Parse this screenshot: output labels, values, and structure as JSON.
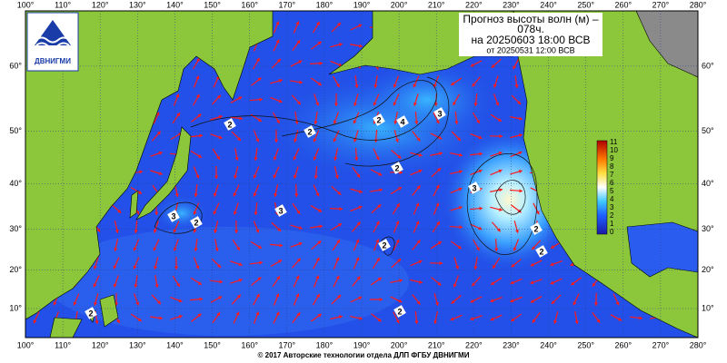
{
  "header": {
    "title": "Прогноз высоты волн (м) –",
    "lead": "078ч.",
    "valid": "на 20250603 18:00 ВСВ",
    "issued": "от 20250531 12:00 ВСВ"
  },
  "logo": {
    "text": "ДВНИГМИ"
  },
  "lon_labels": [
    {
      "value": 100,
      "label": "100°"
    },
    {
      "value": 110,
      "label": "110°"
    },
    {
      "value": 120,
      "label": "120°"
    },
    {
      "value": 130,
      "label": "130°"
    },
    {
      "value": 140,
      "label": "140°"
    },
    {
      "value": 150,
      "label": "150°"
    },
    {
      "value": 160,
      "label": "160°"
    },
    {
      "value": 170,
      "label": "170°"
    },
    {
      "value": 180,
      "label": "180°"
    },
    {
      "value": 190,
      "label": "190°"
    },
    {
      "value": 200,
      "label": "200°"
    },
    {
      "value": 210,
      "label": "210°"
    },
    {
      "value": 220,
      "label": "220°"
    },
    {
      "value": 230,
      "label": "230°"
    },
    {
      "value": 240,
      "label": "240°"
    },
    {
      "value": 250,
      "label": "250°"
    },
    {
      "value": 260,
      "label": "260°"
    },
    {
      "value": 270,
      "label": "270°"
    },
    {
      "value": 280,
      "label": "280°"
    }
  ],
  "lat_labels": [
    {
      "value": 10,
      "label": "10°"
    },
    {
      "value": 20,
      "label": "20°"
    },
    {
      "value": 30,
      "label": "30°"
    },
    {
      "value": 40,
      "label": "40°"
    },
    {
      "value": 50,
      "label": "50°"
    },
    {
      "value": 60,
      "label": "60°"
    }
  ],
  "colorbar": {
    "labels": [
      "11",
      "10",
      "9",
      "8",
      "7",
      "6",
      "5",
      "4",
      "3",
      "2",
      "1",
      "0"
    ]
  },
  "contour_labels": [
    "2",
    "2",
    "4",
    "3",
    "2",
    "2",
    "3",
    "2",
    "2",
    "3",
    "2",
    "3",
    "2",
    "2",
    "2"
  ],
  "footer": "© 2017 Авторские технологии отдела ДЛП ФГБУ ДВНИГМИ"
}
